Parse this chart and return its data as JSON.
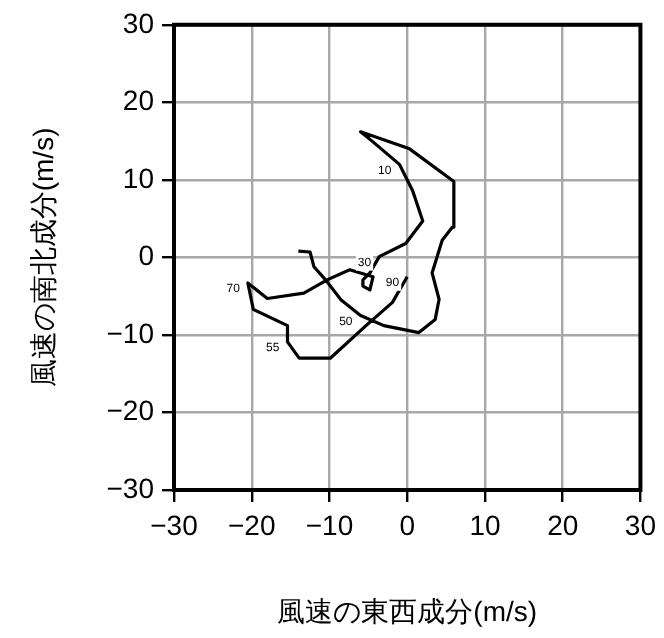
{
  "chart_data": {
    "type": "line",
    "xlabel": "風速の東西成分(m/s)",
    "ylabel": "風速の南北成分(m/s)",
    "xlim": [
      -30,
      30
    ],
    "xticks": [
      -30,
      -20,
      -10,
      0,
      10,
      20,
      30
    ],
    "ylim": [
      -30,
      30
    ],
    "yticks": [
      -30,
      -20,
      -10,
      0,
      10,
      20,
      30
    ],
    "grid": true,
    "legend": false,
    "marker": "none",
    "line_style": "solid",
    "series": [
      {
        "color": "#000000",
        "x": [
          -14,
          -12.5,
          -12,
          -10.5,
          -8.5,
          -6,
          -3,
          1.5,
          3.6,
          4.1,
          3.2,
          4.5,
          5.8,
          6,
          0.3,
          -6,
          -4.4,
          -1,
          0.7,
          2,
          -0.2,
          -3.6,
          -4.8,
          -5.7,
          -5.7,
          -4.8,
          -4.4,
          -7.4,
          -10.3,
          -13.3,
          -18,
          -20.5,
          -19.8,
          -15.4,
          -15.4,
          -13.9,
          -9.9,
          -5.3,
          -1.9,
          0
        ],
        "values": [
          0.8,
          0.7,
          -1.2,
          -2.9,
          -5.5,
          -7.5,
          -8.8,
          -9.7,
          -8,
          -5.4,
          -2,
          2.2,
          3.9,
          9.8,
          14,
          16.2,
          14.9,
          12,
          8.6,
          4.7,
          1.8,
          0.1,
          -2,
          -2.9,
          -3.7,
          -4.2,
          -2.5,
          -1.6,
          -2.9,
          -4.6,
          -5.3,
          -3.3,
          -6.7,
          -8.8,
          -10.9,
          -13,
          -13,
          -8.8,
          -5.8,
          -2.5
        ]
      }
    ],
    "annotations": [
      {
        "text": "10",
        "x": -1,
        "y": 12
      },
      {
        "text": "30",
        "x": -3.6,
        "y": 0.1
      },
      {
        "text": "90",
        "x": 0,
        "y": -2.5
      },
      {
        "text": "50",
        "x": -6,
        "y": -7.5
      },
      {
        "text": "70",
        "x": -20.5,
        "y": -3.3
      },
      {
        "text": "55",
        "x": -15.4,
        "y": -10.9
      }
    ]
  }
}
